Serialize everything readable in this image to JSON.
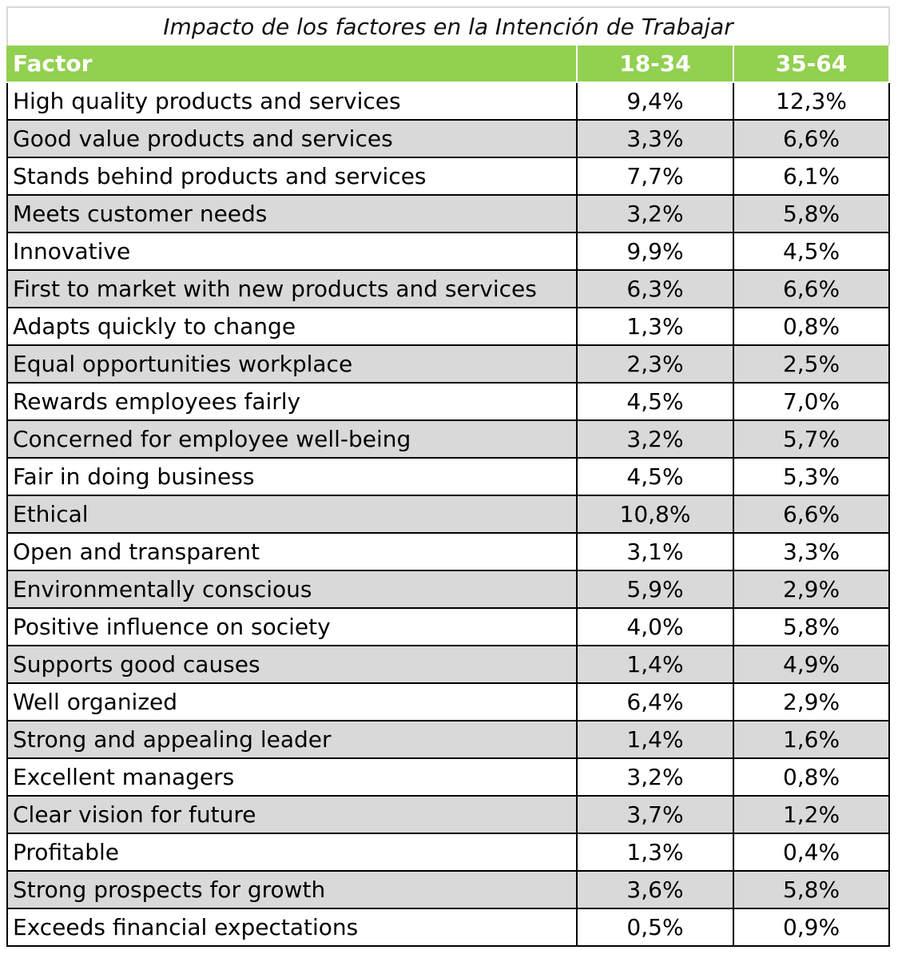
{
  "chart_data": {
    "type": "table",
    "title": "Impacto de los factores en la Intención de Trabajar",
    "columns": [
      "Factor",
      "18-34",
      "35-64"
    ],
    "rows": [
      [
        "High quality products and services",
        "9,4%",
        "12,3%"
      ],
      [
        "Good value products and services",
        "3,3%",
        "6,6%"
      ],
      [
        "Stands behind products and services",
        "7,7%",
        "6,1%"
      ],
      [
        "Meets customer needs",
        "3,2%",
        "5,8%"
      ],
      [
        "Innovative",
        "9,9%",
        "4,5%"
      ],
      [
        "First to market with new products and services",
        "6,3%",
        "6,6%"
      ],
      [
        "Adapts quickly to change",
        "1,3%",
        "0,8%"
      ],
      [
        "Equal opportunities workplace",
        "2,3%",
        "2,5%"
      ],
      [
        "Rewards employees fairly",
        "4,5%",
        "7,0%"
      ],
      [
        "Concerned for employee well-being",
        "3,2%",
        "5,7%"
      ],
      [
        "Fair in doing business",
        "4,5%",
        "5,3%"
      ],
      [
        "Ethical",
        "10,8%",
        "6,6%"
      ],
      [
        "Open and transparent",
        "3,1%",
        "3,3%"
      ],
      [
        "Environmentally conscious",
        "5,9%",
        "2,9%"
      ],
      [
        "Positive influence on society",
        "4,0%",
        "5,8%"
      ],
      [
        "Supports good causes",
        "1,4%",
        "4,9%"
      ],
      [
        "Well organized",
        "6,4%",
        "2,9%"
      ],
      [
        "Strong and appealing leader",
        "1,4%",
        "1,6%"
      ],
      [
        "Excellent managers",
        "3,2%",
        "0,8%"
      ],
      [
        "Clear vision for future",
        "3,7%",
        "1,2%"
      ],
      [
        "Profitable",
        "1,3%",
        "0,4%"
      ],
      [
        "Strong prospects for growth",
        "3,6%",
        "5,8%"
      ],
      [
        "Exceeds financial expectations",
        "0,5%",
        "0,9%"
      ]
    ],
    "series": [
      {
        "name": "18-34",
        "values": [
          9.4,
          3.3,
          7.7,
          3.2,
          9.9,
          6.3,
          1.3,
          2.3,
          4.5,
          3.2,
          4.5,
          10.8,
          3.1,
          5.9,
          4.0,
          1.4,
          6.4,
          1.4,
          3.2,
          3.7,
          1.3,
          3.6,
          0.5
        ]
      },
      {
        "name": "35-64",
        "values": [
          12.3,
          6.6,
          6.1,
          5.8,
          4.5,
          6.6,
          0.8,
          2.5,
          7.0,
          5.7,
          5.3,
          6.6,
          3.3,
          2.9,
          5.8,
          4.9,
          2.9,
          1.6,
          0.8,
          1.2,
          0.4,
          5.8,
          0.9
        ]
      }
    ],
    "colors": {
      "header_bg": "#92d050",
      "header_text": "#ffffff",
      "band_row": "#d9d9d9",
      "grid": "#000000"
    }
  }
}
